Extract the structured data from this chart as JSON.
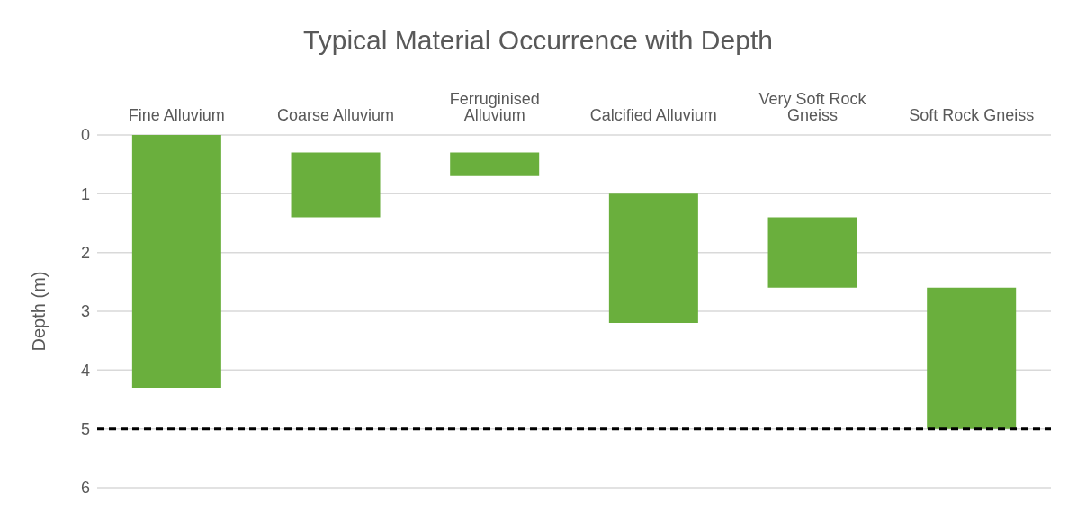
{
  "chart_data": {
    "type": "bar",
    "title": "Typical Material Occurrence with Depth",
    "ylabel": "Depth (m)",
    "categories": [
      "Fine Alluvium",
      "Coarse Alluvium",
      "Ferruginised Alluvium",
      "Calcified Alluvium",
      "Very Soft Rock Gneiss",
      "Soft Rock Gneiss"
    ],
    "base": [
      0,
      0.3,
      0.3,
      1.0,
      1.4,
      2.6
    ],
    "values": [
      4.3,
      1.1,
      0.4,
      2.2,
      1.2,
      2.4
    ],
    "color": "#6aaf3d",
    "ylim": [
      6,
      0
    ],
    "yticks": [
      0,
      1,
      2,
      3,
      4,
      5,
      6
    ],
    "grid": "y",
    "ref_lines": [
      {
        "axis": "y",
        "value": 5,
        "color": "#000000",
        "line_style": "dashed"
      }
    ]
  }
}
